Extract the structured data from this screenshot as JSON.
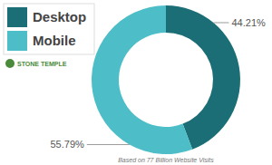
{
  "chart_data": {
    "type": "donut",
    "categories": [
      "Desktop",
      "Mobile"
    ],
    "values": [
      44.21,
      55.79
    ],
    "value_labels": [
      "44.21%",
      "55.79%"
    ],
    "colors": [
      "#1b6e76",
      "#4dbec7"
    ],
    "legend": "top-left",
    "data_labels": true,
    "annotations": [
      "STONE TEMPLE",
      "Based on 77 Billion Website Visits"
    ]
  }
}
